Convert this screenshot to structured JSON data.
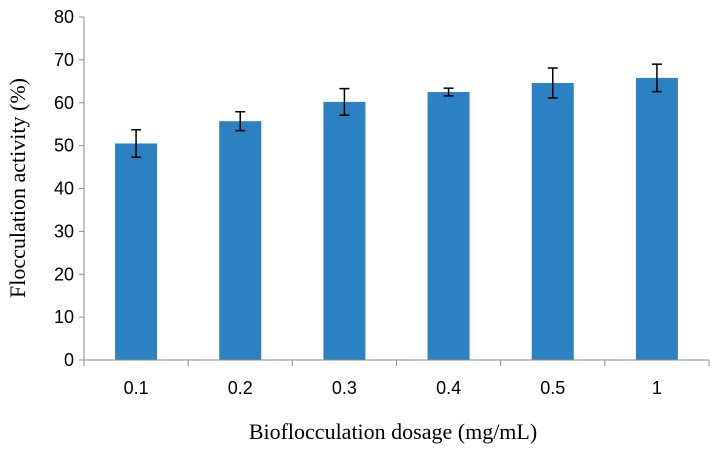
{
  "chart_data": {
    "type": "bar",
    "title": "",
    "xlabel": "Bioflocculation dosage (mg/mL)",
    "ylabel": "Flocculation activity (%)",
    "categories": [
      "0.1",
      "0.2",
      "0.3",
      "0.4",
      "0.5",
      "1"
    ],
    "values": [
      50.5,
      55.7,
      60.2,
      62.5,
      64.6,
      65.8
    ],
    "error": [
      3.2,
      2.2,
      3.1,
      0.9,
      3.5,
      3.2
    ],
    "ylim": [
      0,
      80
    ],
    "yticks": [
      "0",
      "10",
      "20",
      "30",
      "40",
      "50",
      "60",
      "70",
      "80"
    ],
    "grid": false,
    "legend": "none",
    "bar_color": "#2b81c1",
    "error_color": "#000000",
    "axis_color": "#8c8c8c"
  }
}
